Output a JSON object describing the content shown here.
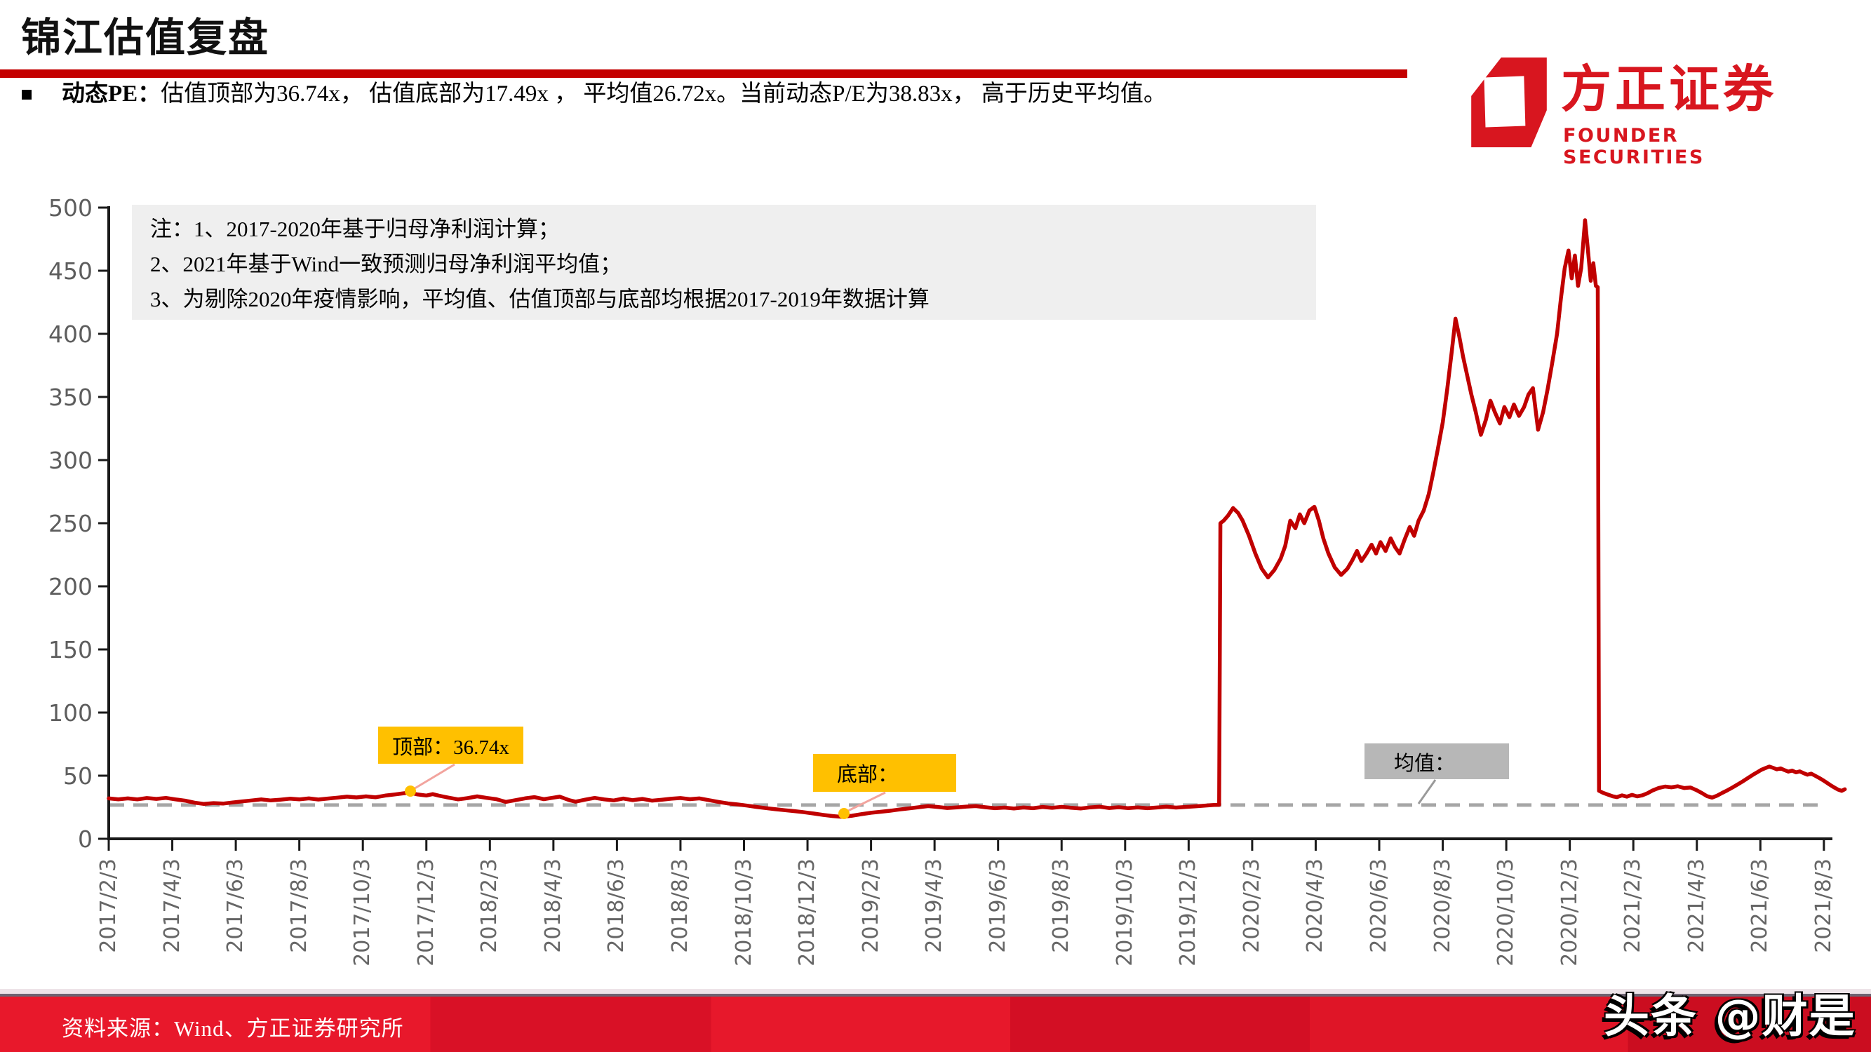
{
  "header": {
    "title": "锦江估值复盘"
  },
  "summary": {
    "label": "动态PE：",
    "text": "估值顶部为36.74x， 估值底部为17.49x ， 平均值26.72x。当前动态P/E为38.83x， 高于历史平均值。"
  },
  "logo": {
    "cn": "方正证券",
    "en": "FOUNDER SECURITIES"
  },
  "note": {
    "line1": "注：1、2017-2020年基于归母净利润计算；",
    "line2": "2、2021年基于Wind一致预测归母净利润平均值；",
    "line3": "3、为剔除2020年疫情影响，平均值、估值顶部与底部均根据2017-2019年数据计算"
  },
  "annotations": {
    "top": {
      "label": "顶部：36.74x",
      "value": 36.74
    },
    "bottom": {
      "label": "底部：",
      "value": 17.49
    },
    "mean": {
      "label": "均值：",
      "value": 26.72
    }
  },
  "footer": {
    "source": "资料来源：Wind、方正证券研究所",
    "watermark": "头条 @财是"
  },
  "colors": {
    "line": "#c00000",
    "mean_dash": "#a6a6a6",
    "axis": "#1a1a1a",
    "annotation_yellow": "#ffc000",
    "annotation_gray": "#b7b7b7",
    "leader_pink": "#f2a49e",
    "leader_gray": "#9a9a9a",
    "accent_red": "#c40000"
  },
  "chart_data": {
    "type": "line",
    "title": "",
    "xlabel": "",
    "ylabel": "",
    "ylim": [
      0,
      500
    ],
    "y_ticks": [
      0,
      50,
      100,
      150,
      200,
      250,
      300,
      350,
      400,
      450,
      500
    ],
    "grid": false,
    "legend": "none",
    "mean_line": 26.72,
    "stats": {
      "top": 36.74,
      "bottom": 17.49,
      "mean": 26.72,
      "current": 38.83
    },
    "x_tick_labels": [
      "2017/2/3",
      "2017/4/3",
      "2017/6/3",
      "2017/8/3",
      "2017/10/3",
      "2017/12/3",
      "2018/2/3",
      "2018/4/3",
      "2018/6/3",
      "2018/8/3",
      "2018/10/3",
      "2018/12/3",
      "2019/2/3",
      "2019/4/3",
      "2019/6/3",
      "2019/8/3",
      "2019/10/3",
      "2019/12/3",
      "2020/2/3",
      "2020/4/3",
      "2020/6/3",
      "2020/8/3",
      "2020/10/3",
      "2020/12/3",
      "2021/2/3",
      "2021/4/3",
      "2021/6/3",
      "2021/8/3"
    ],
    "series": [
      {
        "name": "动态PE",
        "color": "#c00000",
        "points": [
          [
            0,
            32
          ],
          [
            0.15,
            31.3
          ],
          [
            0.3,
            32
          ],
          [
            0.45,
            31.2
          ],
          [
            0.6,
            32.3
          ],
          [
            0.75,
            31.6
          ],
          [
            0.9,
            32.4
          ],
          [
            1.05,
            31.2
          ],
          [
            1.2,
            30.2
          ],
          [
            1.35,
            28.6
          ],
          [
            1.5,
            27.6
          ],
          [
            1.65,
            28.3
          ],
          [
            1.8,
            27.9
          ],
          [
            1.95,
            28.8
          ],
          [
            2.1,
            29.6
          ],
          [
            2.25,
            30.4
          ],
          [
            2.4,
            31.2
          ],
          [
            2.55,
            30.4
          ],
          [
            2.7,
            31
          ],
          [
            2.85,
            31.8
          ],
          [
            3,
            31.2
          ],
          [
            3.15,
            32
          ],
          [
            3.3,
            31.1
          ],
          [
            3.45,
            31.9
          ],
          [
            3.6,
            32.6
          ],
          [
            3.75,
            33.4
          ],
          [
            3.9,
            32.8
          ],
          [
            4.05,
            33.6
          ],
          [
            4.2,
            32.9
          ],
          [
            4.35,
            34.2
          ],
          [
            4.5,
            35.1
          ],
          [
            4.6,
            35.8
          ],
          [
            4.73,
            36.6
          ],
          [
            4.85,
            35.2
          ],
          [
            5,
            34.3
          ],
          [
            5.1,
            35.4
          ],
          [
            5.2,
            34.1
          ],
          [
            5.35,
            32.6
          ],
          [
            5.5,
            31.2
          ],
          [
            5.65,
            32.2
          ],
          [
            5.8,
            33.6
          ],
          [
            5.95,
            32.4
          ],
          [
            6.1,
            31.4
          ],
          [
            6.25,
            29.2
          ],
          [
            6.4,
            30.6
          ],
          [
            6.55,
            32
          ],
          [
            6.7,
            33
          ],
          [
            6.85,
            31.4
          ],
          [
            7,
            32.6
          ],
          [
            7.1,
            33.4
          ],
          [
            7.25,
            30.6
          ],
          [
            7.35,
            29.4
          ],
          [
            7.5,
            31
          ],
          [
            7.65,
            32.4
          ],
          [
            7.8,
            31.2
          ],
          [
            7.95,
            30.4
          ],
          [
            8.1,
            31.9
          ],
          [
            8.25,
            30.6
          ],
          [
            8.4,
            31.6
          ],
          [
            8.55,
            30.2
          ],
          [
            8.7,
            30.9
          ],
          [
            8.85,
            31.7
          ],
          [
            9,
            32.3
          ],
          [
            9.15,
            31.4
          ],
          [
            9.3,
            32
          ],
          [
            9.45,
            30.6
          ],
          [
            9.6,
            29.2
          ],
          [
            9.75,
            28
          ],
          [
            9.9,
            27.2
          ],
          [
            10.05,
            26.3
          ],
          [
            10.2,
            25.2
          ],
          [
            10.35,
            24.3
          ],
          [
            10.5,
            23.4
          ],
          [
            10.65,
            22.6
          ],
          [
            10.8,
            21.9
          ],
          [
            10.95,
            21
          ],
          [
            11.1,
            20
          ],
          [
            11.25,
            18.9
          ],
          [
            11.4,
            18
          ],
          [
            11.55,
            17.4
          ],
          [
            11.7,
            18.3
          ],
          [
            11.85,
            19.5
          ],
          [
            12,
            20.6
          ],
          [
            12.15,
            21.4
          ],
          [
            12.3,
            22.2
          ],
          [
            12.45,
            23.2
          ],
          [
            12.6,
            24.1
          ],
          [
            12.75,
            25
          ],
          [
            12.9,
            25.9
          ],
          [
            13.05,
            25.2
          ],
          [
            13.2,
            24.4
          ],
          [
            13.35,
            24.9
          ],
          [
            13.5,
            25.5
          ],
          [
            13.65,
            25.9
          ],
          [
            13.8,
            25
          ],
          [
            13.95,
            24.2
          ],
          [
            14.1,
            24.7
          ],
          [
            14.25,
            24
          ],
          [
            14.4,
            24.8
          ],
          [
            14.55,
            24.2
          ],
          [
            14.7,
            25.2
          ],
          [
            14.85,
            24.5
          ],
          [
            15,
            25.3
          ],
          [
            15.15,
            24.6
          ],
          [
            15.3,
            24
          ],
          [
            15.45,
            24.9
          ],
          [
            15.6,
            25.4
          ],
          [
            15.75,
            24.4
          ],
          [
            15.9,
            25
          ],
          [
            16.05,
            24.3
          ],
          [
            16.2,
            24.9
          ],
          [
            16.35,
            24.2
          ],
          [
            16.5,
            24.8
          ],
          [
            16.65,
            25.4
          ],
          [
            16.8,
            24.7
          ],
          [
            16.95,
            25.2
          ],
          [
            17.1,
            25.7
          ],
          [
            17.25,
            26.3
          ],
          [
            17.4,
            26.8
          ],
          [
            17.48,
            26.9
          ],
          [
            17.5,
            250
          ],
          [
            17.55,
            252
          ],
          [
            17.62,
            256
          ],
          [
            17.7,
            262
          ],
          [
            17.78,
            258
          ],
          [
            17.85,
            252
          ],
          [
            17.95,
            240
          ],
          [
            18.05,
            226
          ],
          [
            18.15,
            214
          ],
          [
            18.25,
            207
          ],
          [
            18.35,
            213
          ],
          [
            18.45,
            222
          ],
          [
            18.52,
            232
          ],
          [
            18.6,
            252
          ],
          [
            18.68,
            246
          ],
          [
            18.75,
            257
          ],
          [
            18.82,
            250
          ],
          [
            18.9,
            260
          ],
          [
            18.98,
            263
          ],
          [
            19.05,
            252
          ],
          [
            19.12,
            238
          ],
          [
            19.2,
            226
          ],
          [
            19.3,
            215
          ],
          [
            19.4,
            209
          ],
          [
            19.5,
            214
          ],
          [
            19.58,
            221
          ],
          [
            19.65,
            228
          ],
          [
            19.72,
            220
          ],
          [
            19.8,
            226
          ],
          [
            19.88,
            233
          ],
          [
            19.95,
            226
          ],
          [
            20.02,
            235
          ],
          [
            20.1,
            228
          ],
          [
            20.18,
            238
          ],
          [
            20.25,
            231
          ],
          [
            20.32,
            226
          ],
          [
            20.4,
            237
          ],
          [
            20.48,
            247
          ],
          [
            20.55,
            240
          ],
          [
            20.62,
            252
          ],
          [
            20.7,
            260
          ],
          [
            20.78,
            273
          ],
          [
            20.85,
            290
          ],
          [
            20.92,
            308
          ],
          [
            21,
            330
          ],
          [
            21.07,
            356
          ],
          [
            21.14,
            385
          ],
          [
            21.2,
            412
          ],
          [
            21.26,
            398
          ],
          [
            21.32,
            382
          ],
          [
            21.38,
            368
          ],
          [
            21.45,
            352
          ],
          [
            21.52,
            338
          ],
          [
            21.6,
            320
          ],
          [
            21.68,
            332
          ],
          [
            21.75,
            347
          ],
          [
            21.82,
            338
          ],
          [
            21.9,
            329
          ],
          [
            21.97,
            342
          ],
          [
            22.05,
            334
          ],
          [
            22.12,
            344
          ],
          [
            22.2,
            335
          ],
          [
            22.28,
            342
          ],
          [
            22.35,
            352
          ],
          [
            22.42,
            357
          ],
          [
            22.5,
            324
          ],
          [
            22.58,
            338
          ],
          [
            22.65,
            356
          ],
          [
            22.72,
            376
          ],
          [
            22.8,
            400
          ],
          [
            22.86,
            428
          ],
          [
            22.92,
            452
          ],
          [
            22.98,
            466
          ],
          [
            23.03,
            444
          ],
          [
            23.08,
            462
          ],
          [
            23.13,
            438
          ],
          [
            23.18,
            452
          ],
          [
            23.24,
            490
          ],
          [
            23.29,
            464
          ],
          [
            23.33,
            442
          ],
          [
            23.37,
            456
          ],
          [
            23.41,
            438
          ],
          [
            23.44,
            437
          ],
          [
            23.46,
            38
          ],
          [
            23.52,
            36.5
          ],
          [
            23.6,
            35
          ],
          [
            23.68,
            33.6
          ],
          [
            23.74,
            33
          ],
          [
            23.82,
            34.4
          ],
          [
            23.9,
            33.4
          ],
          [
            23.98,
            34.8
          ],
          [
            24.06,
            33.6
          ],
          [
            24.14,
            34.4
          ],
          [
            24.22,
            36
          ],
          [
            24.3,
            38.2
          ],
          [
            24.4,
            40.2
          ],
          [
            24.5,
            41.4
          ],
          [
            24.6,
            40.8
          ],
          [
            24.7,
            41.6
          ],
          [
            24.8,
            40.2
          ],
          [
            24.9,
            40.6
          ],
          [
            25,
            38.4
          ],
          [
            25.08,
            36.2
          ],
          [
            25.16,
            33.8
          ],
          [
            25.24,
            32.6
          ],
          [
            25.32,
            34.2
          ],
          [
            25.4,
            36.4
          ],
          [
            25.48,
            38.4
          ],
          [
            25.56,
            40.6
          ],
          [
            25.64,
            43
          ],
          [
            25.72,
            45.4
          ],
          [
            25.8,
            48
          ],
          [
            25.88,
            50.6
          ],
          [
            25.96,
            53
          ],
          [
            26.02,
            54.8
          ],
          [
            26.08,
            56
          ],
          [
            26.14,
            57.2
          ],
          [
            26.2,
            56.2
          ],
          [
            26.26,
            55
          ],
          [
            26.32,
            55.8
          ],
          [
            26.38,
            54.4
          ],
          [
            26.44,
            53.2
          ],
          [
            26.5,
            54
          ],
          [
            26.56,
            52.6
          ],
          [
            26.62,
            53.4
          ],
          [
            26.68,
            52
          ],
          [
            26.74,
            50.8
          ],
          [
            26.8,
            51.6
          ],
          [
            26.86,
            50
          ],
          [
            26.92,
            48.4
          ],
          [
            26.98,
            46.6
          ],
          [
            27.04,
            44.6
          ],
          [
            27.1,
            42.6
          ],
          [
            27.16,
            40.8
          ],
          [
            27.22,
            39
          ],
          [
            27.28,
            38
          ],
          [
            27.33,
            39.2
          ]
        ]
      }
    ]
  }
}
